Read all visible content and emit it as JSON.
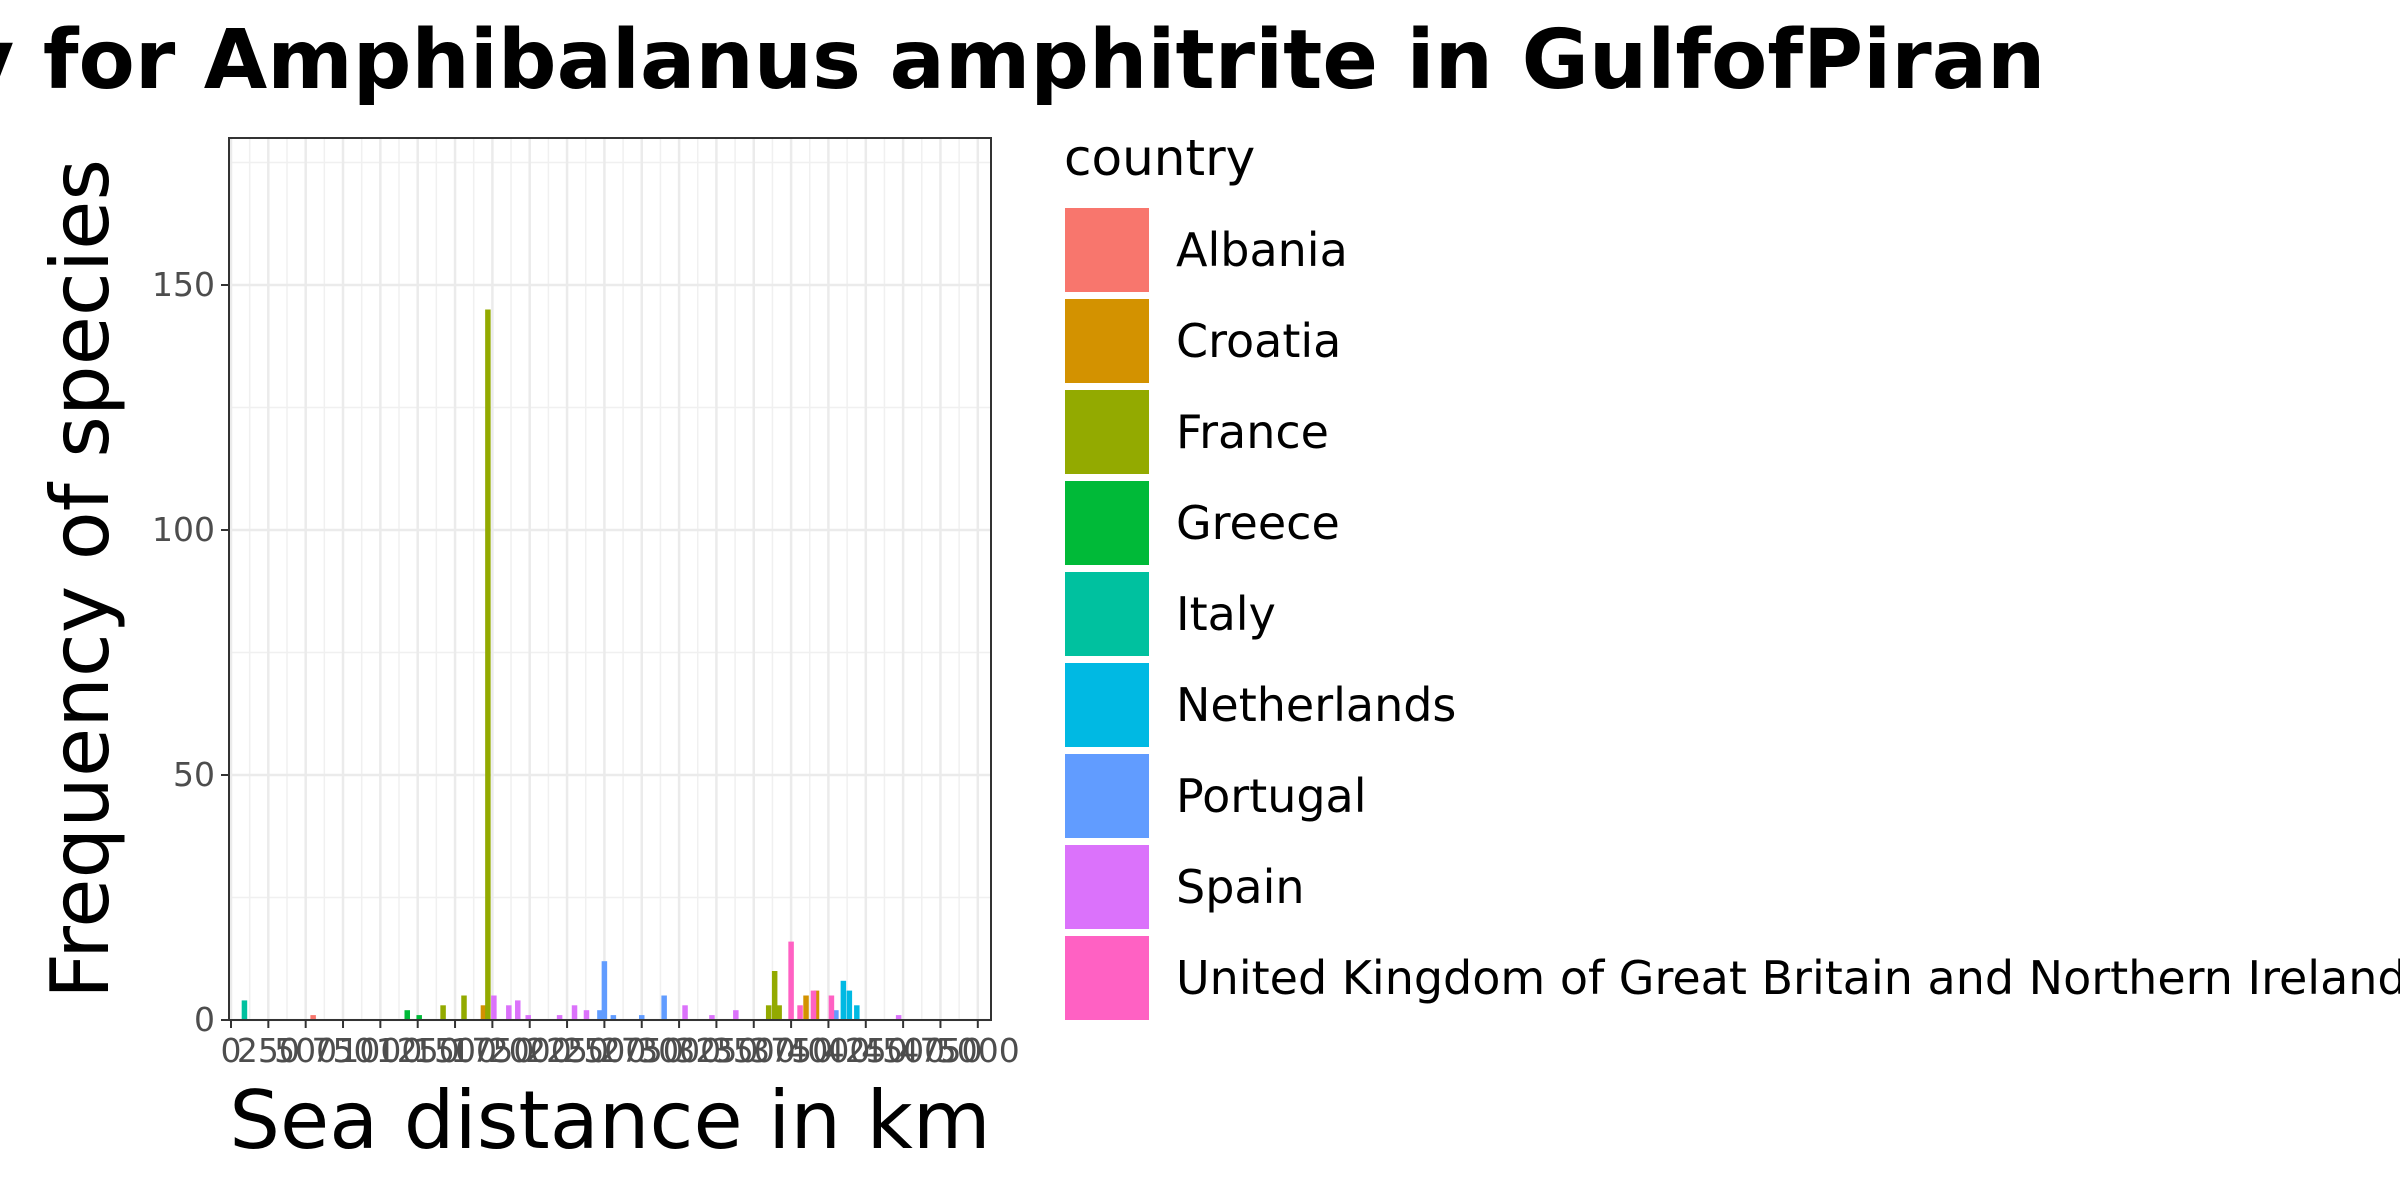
{
  "chart_data": {
    "type": "bar",
    "title": "Distances/country for Amphibalanus amphitrite in GulfofPiran",
    "xlabel": "Sea distance in km",
    "ylabel": "Frequency of species",
    "xlim": [
      0,
      5075
    ],
    "ylim": [
      0,
      180
    ],
    "yticks": [
      0,
      50,
      100,
      150
    ],
    "xticks": [
      0,
      250,
      500,
      750,
      1000,
      1250,
      1500,
      1750,
      2000,
      2250,
      2500,
      2750,
      3000,
      3250,
      3500,
      3750,
      4000,
      4250,
      4500,
      4750,
      5000
    ],
    "x_tick_labels": [
      "0",
      "250",
      "500",
      "750",
      "1000",
      "1250",
      "1500",
      "1750",
      "2000",
      "2250",
      "2500",
      "2750",
      "3000",
      "3250",
      "3500",
      "3750",
      "4000",
      "4250",
      "4500",
      "4750",
      "5000"
    ],
    "grid": true,
    "legend_title": "country",
    "legend_position": "right",
    "series": [
      {
        "name": "Albania",
        "color": "#F8766D",
        "points": [
          [
            550,
            1
          ]
        ]
      },
      {
        "name": "Croatia",
        "color": "#D39200",
        "points": [
          [
            1690,
            3
          ],
          [
            3850,
            5
          ],
          [
            3920,
            6
          ]
        ]
      },
      {
        "name": "France",
        "color": "#93AA00",
        "points": [
          [
            1420,
            3
          ],
          [
            1560,
            5
          ],
          [
            1720,
            145
          ],
          [
            3600,
            3
          ],
          [
            3640,
            10
          ],
          [
            3670,
            3
          ]
        ]
      },
      {
        "name": "Greece",
        "color": "#00BA38",
        "points": [
          [
            1180,
            2
          ],
          [
            1260,
            1
          ]
        ]
      },
      {
        "name": "Italy",
        "color": "#00C19F",
        "points": [
          [
            90,
            4
          ]
        ]
      },
      {
        "name": "Netherlands",
        "color": "#00B9E3",
        "points": [
          [
            4100,
            8
          ],
          [
            4140,
            6
          ],
          [
            4190,
            3
          ]
        ]
      },
      {
        "name": "Portugal",
        "color": "#619CFF",
        "points": [
          [
            2470,
            2
          ],
          [
            2500,
            12
          ],
          [
            2560,
            1
          ],
          [
            2750,
            1
          ],
          [
            2900,
            5
          ],
          [
            4050,
            2
          ]
        ]
      },
      {
        "name": "Spain",
        "color": "#DB72FB",
        "points": [
          [
            1760,
            5
          ],
          [
            1860,
            3
          ],
          [
            1920,
            4
          ],
          [
            1990,
            1
          ],
          [
            2200,
            1
          ],
          [
            2300,
            3
          ],
          [
            2380,
            2
          ],
          [
            3040,
            3
          ],
          [
            3220,
            1
          ],
          [
            3380,
            2
          ],
          [
            4470,
            1
          ]
        ]
      },
      {
        "name": "United Kingdom of Great Britain and Northern Ireland",
        "color": "#FF61C3",
        "points": [
          [
            3750,
            16
          ],
          [
            3810,
            3
          ],
          [
            3900,
            6
          ],
          [
            4020,
            5
          ]
        ]
      }
    ]
  }
}
